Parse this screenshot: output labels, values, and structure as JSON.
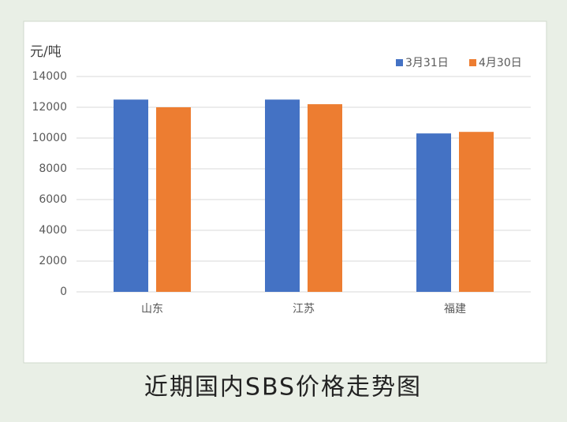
{
  "chart_data": {
    "type": "bar",
    "ylabel": "元/吨",
    "caption": "近期国内SBS价格走势图",
    "categories": [
      "山东",
      "江苏",
      "福建"
    ],
    "series": [
      {
        "name": "3月31日",
        "color": "#4472c4",
        "values": [
          12500,
          12500,
          10300
        ]
      },
      {
        "name": "4月30日",
        "color": "#ed7d31",
        "values": [
          12000,
          12200,
          10400
        ]
      }
    ],
    "ylim": [
      0,
      14000
    ],
    "yticks": [
      0,
      2000,
      4000,
      6000,
      8000,
      10000,
      12000,
      14000
    ],
    "grid": true,
    "legend": "top-right"
  }
}
